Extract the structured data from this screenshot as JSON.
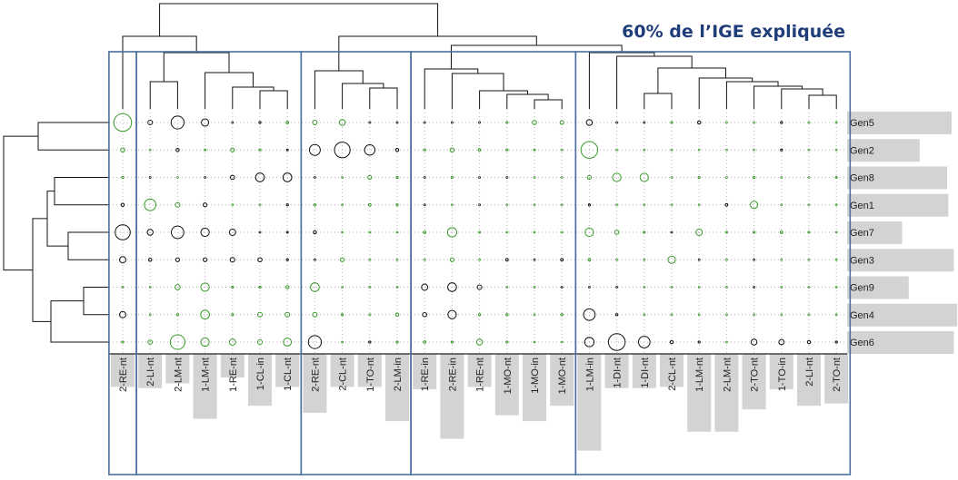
{
  "title": "60% de l’IGE expliquée",
  "colors": {
    "positive": "#3a9b2a",
    "negative": "#111111",
    "bar": "#d3d3d3",
    "frame": "#4a6fa0",
    "title": "#1f3d78",
    "grid": "#b4b4b4"
  },
  "chart_data": {
    "type": "heatmap",
    "encoding": "circle size = |value|, color = sign (black negative, green positive)",
    "rows": [
      "Gen5",
      "Gen2",
      "Gen8",
      "Gen1",
      "Gen7",
      "Gen3",
      "Gen9",
      "Gen4",
      "Gen6"
    ],
    "columns": [
      "2-RE-nt",
      "2-LI-nt",
      "2-LM-nt",
      "1-LM-nt",
      "1-RE-nt",
      "1-CL-in",
      "1-CL-nt",
      "2-RE-nt",
      "2-CL-nt",
      "1-TO-nt",
      "2-LM-in",
      "1-RE-in",
      "2-RE-in",
      "1-RE-nt",
      "1-MO-nt",
      "1-MO-in",
      "1-MO-nt",
      "1-LM-in",
      "1-DI-nt",
      "1-DI-nt",
      "2-CL-nt",
      "1-LM-nt",
      "2-LM-nt",
      "2-TO-nt",
      "1-TO-in",
      "2-LI-nt",
      "2-TO-nt"
    ],
    "column_groups": [
      [
        0,
        0
      ],
      [
        1,
        6
      ],
      [
        7,
        10
      ],
      [
        11,
        16
      ],
      [
        17,
        26
      ]
    ],
    "row_bar_values": [
      0.95,
      0.66,
      0.91,
      0.92,
      0.5,
      0.97,
      0.56,
      1.0,
      0.97
    ],
    "col_bar_values": [
      0.28,
      0.29,
      0.25,
      0.55,
      0.2,
      0.44,
      0.28,
      0.5,
      0.28,
      0.28,
      0.57,
      0.3,
      0.72,
      0.28,
      0.52,
      0.57,
      0.44,
      0.82,
      0.29,
      0.29,
      0.28,
      0.66,
      0.66,
      0.47,
      0.3,
      0.44,
      0.42
    ],
    "values": [
      [
        0.85,
        -0.22,
        -0.62,
        -0.35,
        -0.04,
        -0.1,
        0.12,
        0.22,
        0.28,
        -0.04,
        -0.04,
        -0.04,
        -0.04,
        -0.04,
        0.08,
        0.2,
        0.18,
        -0.28,
        -0.04,
        -0.04,
        0.08,
        -0.15,
        0.04,
        0.04,
        -0.1,
        0.04,
        0.04
      ],
      [
        0.2,
        0.04,
        -0.15,
        0.08,
        0.18,
        0.1,
        -0.06,
        -0.52,
        -0.75,
        -0.5,
        -0.15,
        0.1,
        0.2,
        0.12,
        0.1,
        0.08,
        0.04,
        0.8,
        0.04,
        0.04,
        0.04,
        0.04,
        0.04,
        0.04,
        -0.1,
        0.04,
        0.04
      ],
      [
        0.1,
        -0.04,
        0.04,
        -0.04,
        -0.2,
        -0.42,
        -0.42,
        -0.04,
        0.04,
        0.18,
        0.1,
        -0.04,
        0.1,
        -0.04,
        -0.04,
        0.04,
        0.04,
        0.18,
        0.4,
        0.4,
        0.04,
        0.1,
        0.04,
        0.1,
        0.04,
        0.04,
        0.08
      ],
      [
        -0.15,
        0.55,
        0.22,
        -0.18,
        0.04,
        0.04,
        -0.1,
        0.1,
        0.04,
        0.12,
        0.1,
        -0.04,
        0.04,
        -0.04,
        0.04,
        0.04,
        0.04,
        -0.1,
        0.04,
        0.04,
        0.04,
        0.04,
        -0.12,
        0.35,
        0.04,
        0.04,
        0.04
      ],
      [
        -0.72,
        -0.28,
        -0.6,
        -0.4,
        -0.3,
        -0.04,
        -0.08,
        -0.15,
        0.04,
        0.04,
        0.04,
        0.12,
        0.45,
        0.08,
        0.04,
        0.04,
        0.04,
        0.4,
        0.2,
        0.1,
        -0.04,
        0.3,
        0.08,
        0.1,
        0.12,
        0.08,
        0.04
      ],
      [
        -0.3,
        -0.15,
        -0.18,
        -0.18,
        -0.22,
        -0.2,
        -0.1,
        -0.04,
        0.18,
        0.04,
        0.04,
        0.04,
        0.18,
        0.04,
        -0.12,
        -0.04,
        -0.12,
        0.12,
        0.04,
        0.04,
        0.35,
        -0.04,
        0.04,
        -0.04,
        0.04,
        0.04,
        0.04
      ],
      [
        0.04,
        0.04,
        0.25,
        0.4,
        0.1,
        0.1,
        0.15,
        0.42,
        0.04,
        0.04,
        0.04,
        -0.3,
        -0.42,
        -0.22,
        0.04,
        0.04,
        -0.04,
        -0.04,
        -0.04,
        0.04,
        0.04,
        0.04,
        0.04,
        -0.04,
        0.04,
        0.04,
        0.04
      ],
      [
        -0.3,
        0.04,
        0.1,
        0.42,
        0.1,
        0.22,
        0.22,
        0.22,
        0.1,
        0.04,
        0.15,
        -0.2,
        -0.4,
        0.1,
        0.1,
        0.04,
        0.1,
        -0.55,
        -0.1,
        0.04,
        0.04,
        0.04,
        0.04,
        0.04,
        0.04,
        0.04,
        0.04
      ],
      [
        0.1,
        0.2,
        0.7,
        0.4,
        0.3,
        0.22,
        0.38,
        -0.62,
        0.04,
        -0.1,
        0.1,
        0.12,
        0.1,
        0.28,
        0.1,
        0.04,
        0.04,
        -0.45,
        -0.8,
        -0.55,
        -0.15,
        -0.1,
        0.04,
        -0.28,
        -0.25,
        -0.15,
        -0.1
      ]
    ]
  }
}
